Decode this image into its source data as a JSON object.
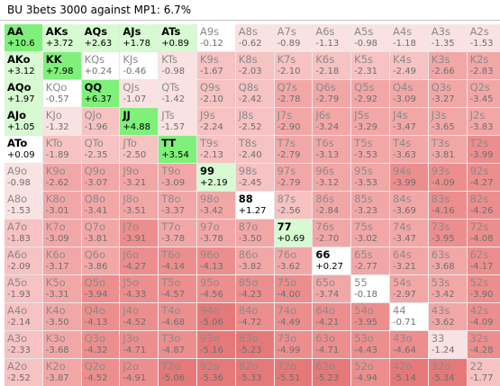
{
  "window": {
    "title": "BU 3bets 3000 against MP1: 6.7%"
  },
  "colors": {
    "bright_green": "#7ff07a",
    "light_green": "#d7fad2",
    "white": "#ffffff",
    "pale_red": "#fbe2e2",
    "light_red": "#f6c2c2",
    "mid_red": "#f2a7a7",
    "red": "#ec8e8e",
    "dark_red": "#e57979"
  },
  "grid": [
    [
      {
        "hand": "AA",
        "ev": "+10.6",
        "color": "bright_green",
        "bold": true
      },
      {
        "hand": "AKs",
        "ev": "+3.72",
        "color": "light_green",
        "bold": true
      },
      {
        "hand": "AQs",
        "ev": "+2.63",
        "color": "light_green",
        "bold": true
      },
      {
        "hand": "AJs",
        "ev": "+1.78",
        "color": "light_green",
        "bold": true
      },
      {
        "hand": "ATs",
        "ev": "+0.89",
        "color": "light_green",
        "bold": true
      },
      {
        "hand": "A9s",
        "ev": "-0.12",
        "color": "white",
        "bold": false
      },
      {
        "hand": "A8s",
        "ev": "-0.62",
        "color": "pale_red",
        "bold": false
      },
      {
        "hand": "A7s",
        "ev": "-0.89",
        "color": "pale_red",
        "bold": false
      },
      {
        "hand": "A6s",
        "ev": "-1.13",
        "color": "pale_red",
        "bold": false
      },
      {
        "hand": "A5s",
        "ev": "-0.98",
        "color": "pale_red",
        "bold": false
      },
      {
        "hand": "A4s",
        "ev": "-1.18",
        "color": "pale_red",
        "bold": false
      },
      {
        "hand": "A3s",
        "ev": "-1.35",
        "color": "pale_red",
        "bold": false
      },
      {
        "hand": "A2s",
        "ev": "-1.53",
        "color": "pale_red",
        "bold": false
      }
    ],
    [
      {
        "hand": "AKo",
        "ev": "+3.12",
        "color": "light_green",
        "bold": true
      },
      {
        "hand": "KK",
        "ev": "+7.98",
        "color": "bright_green",
        "bold": true
      },
      {
        "hand": "KQs",
        "ev": "+0.24",
        "color": "white",
        "bold": false
      },
      {
        "hand": "KJs",
        "ev": "-0.46",
        "color": "white",
        "bold": false
      },
      {
        "hand": "KTs",
        "ev": "-0.98",
        "color": "pale_red",
        "bold": false
      },
      {
        "hand": "K9s",
        "ev": "-1.67",
        "color": "light_red",
        "bold": false
      },
      {
        "hand": "K8s",
        "ev": "-2.03",
        "color": "light_red",
        "bold": false
      },
      {
        "hand": "K7s",
        "ev": "-2.10",
        "color": "light_red",
        "bold": false
      },
      {
        "hand": "K6s",
        "ev": "-2.18",
        "color": "light_red",
        "bold": false
      },
      {
        "hand": "K5s",
        "ev": "-2.31",
        "color": "light_red",
        "bold": false
      },
      {
        "hand": "K4s",
        "ev": "-2.49",
        "color": "light_red",
        "bold": false
      },
      {
        "hand": "K3s",
        "ev": "-2.66",
        "color": "mid_red",
        "bold": false
      },
      {
        "hand": "K2s",
        "ev": "-2.83",
        "color": "mid_red",
        "bold": false
      }
    ],
    [
      {
        "hand": "AQo",
        "ev": "+1.97",
        "color": "light_green",
        "bold": true
      },
      {
        "hand": "KQo",
        "ev": "-0.57",
        "color": "white",
        "bold": false
      },
      {
        "hand": "QQ",
        "ev": "+6.37",
        "color": "bright_green",
        "bold": true
      },
      {
        "hand": "QJs",
        "ev": "-1.07",
        "color": "pale_red",
        "bold": false
      },
      {
        "hand": "QTs",
        "ev": "-1.42",
        "color": "pale_red",
        "bold": false
      },
      {
        "hand": "Q9s",
        "ev": "-2.10",
        "color": "light_red",
        "bold": false
      },
      {
        "hand": "Q8s",
        "ev": "-2.42",
        "color": "light_red",
        "bold": false
      },
      {
        "hand": "Q7s",
        "ev": "-2.78",
        "color": "mid_red",
        "bold": false
      },
      {
        "hand": "Q6s",
        "ev": "-2.79",
        "color": "mid_red",
        "bold": false
      },
      {
        "hand": "Q5s",
        "ev": "-2.92",
        "color": "mid_red",
        "bold": false
      },
      {
        "hand": "Q4s",
        "ev": "-3.09",
        "color": "mid_red",
        "bold": false
      },
      {
        "hand": "Q3s",
        "ev": "-3.27",
        "color": "mid_red",
        "bold": false
      },
      {
        "hand": "Q2s",
        "ev": "-3.45",
        "color": "mid_red",
        "bold": false
      }
    ],
    [
      {
        "hand": "AJo",
        "ev": "+1.05",
        "color": "light_green",
        "bold": true
      },
      {
        "hand": "KJo",
        "ev": "-1.32",
        "color": "pale_red",
        "bold": false
      },
      {
        "hand": "QJo",
        "ev": "-1.96",
        "color": "light_red",
        "bold": false
      },
      {
        "hand": "JJ",
        "ev": "+4.88",
        "color": "bright_green",
        "bold": true
      },
      {
        "hand": "JTs",
        "ev": "-1.57",
        "color": "pale_red",
        "bold": false
      },
      {
        "hand": "J9s",
        "ev": "-2.24",
        "color": "light_red",
        "bold": false
      },
      {
        "hand": "J8s",
        "ev": "-2.52",
        "color": "light_red",
        "bold": false
      },
      {
        "hand": "J7s",
        "ev": "-2.90",
        "color": "mid_red",
        "bold": false
      },
      {
        "hand": "J6s",
        "ev": "-3.24",
        "color": "mid_red",
        "bold": false
      },
      {
        "hand": "J5s",
        "ev": "-3.29",
        "color": "mid_red",
        "bold": false
      },
      {
        "hand": "J4s",
        "ev": "-3.47",
        "color": "mid_red",
        "bold": false
      },
      {
        "hand": "J3s",
        "ev": "-3.65",
        "color": "mid_red",
        "bold": false
      },
      {
        "hand": "J2s",
        "ev": "-3.83",
        "color": "mid_red",
        "bold": false
      }
    ],
    [
      {
        "hand": "ATo",
        "ev": "+0.09",
        "color": "white",
        "bold": true
      },
      {
        "hand": "KTo",
        "ev": "-1.89",
        "color": "light_red",
        "bold": false
      },
      {
        "hand": "QTo",
        "ev": "-2.35",
        "color": "light_red",
        "bold": false
      },
      {
        "hand": "JTo",
        "ev": "-2.50",
        "color": "light_red",
        "bold": false
      },
      {
        "hand": "TT",
        "ev": "+3.54",
        "color": "bright_green",
        "bold": true
      },
      {
        "hand": "T9s",
        "ev": "-2.13",
        "color": "light_red",
        "bold": false
      },
      {
        "hand": "T8s",
        "ev": "-2.40",
        "color": "light_red",
        "bold": false
      },
      {
        "hand": "T7s",
        "ev": "-2.79",
        "color": "mid_red",
        "bold": false
      },
      {
        "hand": "T6s",
        "ev": "-3.13",
        "color": "mid_red",
        "bold": false
      },
      {
        "hand": "T5s",
        "ev": "-3.53",
        "color": "mid_red",
        "bold": false
      },
      {
        "hand": "T4s",
        "ev": "-3.63",
        "color": "mid_red",
        "bold": false
      },
      {
        "hand": "T3s",
        "ev": "-3.81",
        "color": "mid_red",
        "bold": false
      },
      {
        "hand": "T2s",
        "ev": "-3.99",
        "color": "red",
        "bold": false
      }
    ],
    [
      {
        "hand": "A9o",
        "ev": "-0.98",
        "color": "pale_red",
        "bold": false
      },
      {
        "hand": "K9o",
        "ev": "-2.62",
        "color": "mid_red",
        "bold": false
      },
      {
        "hand": "Q9o",
        "ev": "-3.07",
        "color": "mid_red",
        "bold": false
      },
      {
        "hand": "J9o",
        "ev": "-3.21",
        "color": "mid_red",
        "bold": false
      },
      {
        "hand": "T9o",
        "ev": "-3.09",
        "color": "mid_red",
        "bold": false
      },
      {
        "hand": "99",
        "ev": "+2.19",
        "color": "light_green",
        "bold": true
      },
      {
        "hand": "98s",
        "ev": "-2.45",
        "color": "light_red",
        "bold": false
      },
      {
        "hand": "97s",
        "ev": "-2.79",
        "color": "mid_red",
        "bold": false
      },
      {
        "hand": "96s",
        "ev": "-3.12",
        "color": "mid_red",
        "bold": false
      },
      {
        "hand": "95s",
        "ev": "-3.53",
        "color": "mid_red",
        "bold": false
      },
      {
        "hand": "94s",
        "ev": "-3.99",
        "color": "red",
        "bold": false
      },
      {
        "hand": "93s",
        "ev": "-4.09",
        "color": "red",
        "bold": false
      },
      {
        "hand": "92s",
        "ev": "-4.27",
        "color": "red",
        "bold": false
      }
    ],
    [
      {
        "hand": "A8o",
        "ev": "-1.53",
        "color": "pale_red",
        "bold": false
      },
      {
        "hand": "K8o",
        "ev": "-3.01",
        "color": "mid_red",
        "bold": false
      },
      {
        "hand": "Q8o",
        "ev": "-3.41",
        "color": "mid_red",
        "bold": false
      },
      {
        "hand": "J8o",
        "ev": "-3.51",
        "color": "mid_red",
        "bold": false
      },
      {
        "hand": "T8o",
        "ev": "-3.37",
        "color": "mid_red",
        "bold": false
      },
      {
        "hand": "98o",
        "ev": "-3.42",
        "color": "mid_red",
        "bold": false
      },
      {
        "hand": "88",
        "ev": "+1.27",
        "color": "white",
        "bold": true
      },
      {
        "hand": "87s",
        "ev": "-2.56",
        "color": "light_red",
        "bold": false
      },
      {
        "hand": "86s",
        "ev": "-2.84",
        "color": "mid_red",
        "bold": false
      },
      {
        "hand": "85s",
        "ev": "-3.23",
        "color": "mid_red",
        "bold": false
      },
      {
        "hand": "84s",
        "ev": "-3.69",
        "color": "mid_red",
        "bold": false
      },
      {
        "hand": "83s",
        "ev": "-4.16",
        "color": "red",
        "bold": false
      },
      {
        "hand": "82s",
        "ev": "-4.26",
        "color": "red",
        "bold": false
      }
    ],
    [
      {
        "hand": "A7o",
        "ev": "-1.83",
        "color": "light_red",
        "bold": false
      },
      {
        "hand": "K7o",
        "ev": "-3.09",
        "color": "mid_red",
        "bold": false
      },
      {
        "hand": "Q7o",
        "ev": "-3.81",
        "color": "mid_red",
        "bold": false
      },
      {
        "hand": "J7o",
        "ev": "-3.91",
        "color": "red",
        "bold": false
      },
      {
        "hand": "T7o",
        "ev": "-3.78",
        "color": "mid_red",
        "bold": false
      },
      {
        "hand": "97o",
        "ev": "-3.78",
        "color": "mid_red",
        "bold": false
      },
      {
        "hand": "87o",
        "ev": "-3.50",
        "color": "mid_red",
        "bold": false
      },
      {
        "hand": "77",
        "ev": "+0.69",
        "color": "light_green",
        "bold": true
      },
      {
        "hand": "76s",
        "ev": "-2.70",
        "color": "mid_red",
        "bold": false
      },
      {
        "hand": "75s",
        "ev": "-3.02",
        "color": "mid_red",
        "bold": false
      },
      {
        "hand": "74s",
        "ev": "-3.47",
        "color": "mid_red",
        "bold": false
      },
      {
        "hand": "73s",
        "ev": "-3.95",
        "color": "red",
        "bold": false
      },
      {
        "hand": "72s",
        "ev": "-4.08",
        "color": "red",
        "bold": false
      }
    ],
    [
      {
        "hand": "A6o",
        "ev": "-2.09",
        "color": "light_red",
        "bold": false
      },
      {
        "hand": "K6o",
        "ev": "-3.17",
        "color": "mid_red",
        "bold": false
      },
      {
        "hand": "Q6o",
        "ev": "-3.86",
        "color": "mid_red",
        "bold": false
      },
      {
        "hand": "J6o",
        "ev": "-4.27",
        "color": "red",
        "bold": false
      },
      {
        "hand": "T6o",
        "ev": "-4.14",
        "color": "red",
        "bold": false
      },
      {
        "hand": "96o",
        "ev": "-4.13",
        "color": "red",
        "bold": false
      },
      {
        "hand": "86o",
        "ev": "-3.82",
        "color": "mid_red",
        "bold": false
      },
      {
        "hand": "76o",
        "ev": "-3.62",
        "color": "mid_red",
        "bold": false
      },
      {
        "hand": "66",
        "ev": "+0.27",
        "color": "white",
        "bold": true
      },
      {
        "hand": "65s",
        "ev": "-2.77",
        "color": "mid_red",
        "bold": false
      },
      {
        "hand": "64s",
        "ev": "-3.21",
        "color": "mid_red",
        "bold": false
      },
      {
        "hand": "63s",
        "ev": "-3.68",
        "color": "mid_red",
        "bold": false
      },
      {
        "hand": "62s",
        "ev": "-4.17",
        "color": "red",
        "bold": false
      }
    ],
    [
      {
        "hand": "A5o",
        "ev": "-1.93",
        "color": "light_red",
        "bold": false
      },
      {
        "hand": "K5o",
        "ev": "-3.31",
        "color": "mid_red",
        "bold": false
      },
      {
        "hand": "Q5o",
        "ev": "-3.94",
        "color": "red",
        "bold": false
      },
      {
        "hand": "J5o",
        "ev": "-4.33",
        "color": "red",
        "bold": false
      },
      {
        "hand": "T5o",
        "ev": "-4.57",
        "color": "red",
        "bold": false
      },
      {
        "hand": "95o",
        "ev": "-4.56",
        "color": "red",
        "bold": false
      },
      {
        "hand": "85o",
        "ev": "-4.23",
        "color": "red",
        "bold": false
      },
      {
        "hand": "75o",
        "ev": "-4.00",
        "color": "red",
        "bold": false
      },
      {
        "hand": "65o",
        "ev": "-3.74",
        "color": "mid_red",
        "bold": false
      },
      {
        "hand": "55",
        "ev": "-0.18",
        "color": "white",
        "bold": false
      },
      {
        "hand": "54s",
        "ev": "-2.97",
        "color": "mid_red",
        "bold": false
      },
      {
        "hand": "53s",
        "ev": "-3.42",
        "color": "mid_red",
        "bold": false
      },
      {
        "hand": "52s",
        "ev": "-3.90",
        "color": "red",
        "bold": false
      }
    ],
    [
      {
        "hand": "A4o",
        "ev": "-2.14",
        "color": "light_red",
        "bold": false
      },
      {
        "hand": "K4o",
        "ev": "-3.50",
        "color": "mid_red",
        "bold": false
      },
      {
        "hand": "Q4o",
        "ev": "-4.13",
        "color": "red",
        "bold": false
      },
      {
        "hand": "J4o",
        "ev": "-4.52",
        "color": "red",
        "bold": false
      },
      {
        "hand": "T4o",
        "ev": "-4.68",
        "color": "red",
        "bold": false
      },
      {
        "hand": "94o",
        "ev": "-5.06",
        "color": "dark_red",
        "bold": false
      },
      {
        "hand": "84o",
        "ev": "-4.72",
        "color": "red",
        "bold": false
      },
      {
        "hand": "74o",
        "ev": "-4.49",
        "color": "red",
        "bold": false
      },
      {
        "hand": "64o",
        "ev": "-4.21",
        "color": "red",
        "bold": false
      },
      {
        "hand": "54o",
        "ev": "-3.95",
        "color": "red",
        "bold": false
      },
      {
        "hand": "44",
        "ev": "-0.71",
        "color": "white",
        "bold": false
      },
      {
        "hand": "43s",
        "ev": "-3.62",
        "color": "mid_red",
        "bold": false
      },
      {
        "hand": "42s",
        "ev": "-4.09",
        "color": "red",
        "bold": false
      }
    ],
    [
      {
        "hand": "A3o",
        "ev": "-2.33",
        "color": "light_red",
        "bold": false
      },
      {
        "hand": "K3o",
        "ev": "-3.68",
        "color": "mid_red",
        "bold": false
      },
      {
        "hand": "Q3o",
        "ev": "-4.32",
        "color": "red",
        "bold": false
      },
      {
        "hand": "J3o",
        "ev": "-4.71",
        "color": "red",
        "bold": false
      },
      {
        "hand": "T3o",
        "ev": "-4.87",
        "color": "red",
        "bold": false
      },
      {
        "hand": "93o",
        "ev": "-5.16",
        "color": "dark_red",
        "bold": false
      },
      {
        "hand": "83o",
        "ev": "-5.23",
        "color": "dark_red",
        "bold": false
      },
      {
        "hand": "73o",
        "ev": "-4.99",
        "color": "red",
        "bold": false
      },
      {
        "hand": "63o",
        "ev": "-4.71",
        "color": "red",
        "bold": false
      },
      {
        "hand": "53o",
        "ev": "-4.43",
        "color": "red",
        "bold": false
      },
      {
        "hand": "43o",
        "ev": "-4.64",
        "color": "red",
        "bold": false
      },
      {
        "hand": "33",
        "ev": "-1.24",
        "color": "pale_red",
        "bold": false
      },
      {
        "hand": "32s",
        "ev": "-4.28",
        "color": "red",
        "bold": false
      }
    ],
    [
      {
        "hand": "A2o",
        "ev": "-2.52",
        "color": "light_red",
        "bold": false
      },
      {
        "hand": "K2o",
        "ev": "-3.87",
        "color": "mid_red",
        "bold": false
      },
      {
        "hand": "Q2o",
        "ev": "-4.52",
        "color": "red",
        "bold": false
      },
      {
        "hand": "J2o",
        "ev": "-4.91",
        "color": "red",
        "bold": false
      },
      {
        "hand": "T2o",
        "ev": "-5.06",
        "color": "dark_red",
        "bold": false
      },
      {
        "hand": "92o",
        "ev": "-5.36",
        "color": "dark_red",
        "bold": false
      },
      {
        "hand": "82o",
        "ev": "-5.33",
        "color": "dark_red",
        "bold": false
      },
      {
        "hand": "72o",
        "ev": "-5.51",
        "color": "dark_red",
        "bold": false
      },
      {
        "hand": "62o",
        "ev": "-5.23",
        "color": "dark_red",
        "bold": false
      },
      {
        "hand": "52o",
        "ev": "-4.94",
        "color": "red",
        "bold": false
      },
      {
        "hand": "42o",
        "ev": "-5.14",
        "color": "dark_red",
        "bold": false
      },
      {
        "hand": "32o",
        "ev": "-5.34",
        "color": "dark_red",
        "bold": false
      },
      {
        "hand": "22",
        "ev": "-1.77",
        "color": "light_red",
        "bold": false
      }
    ]
  ]
}
